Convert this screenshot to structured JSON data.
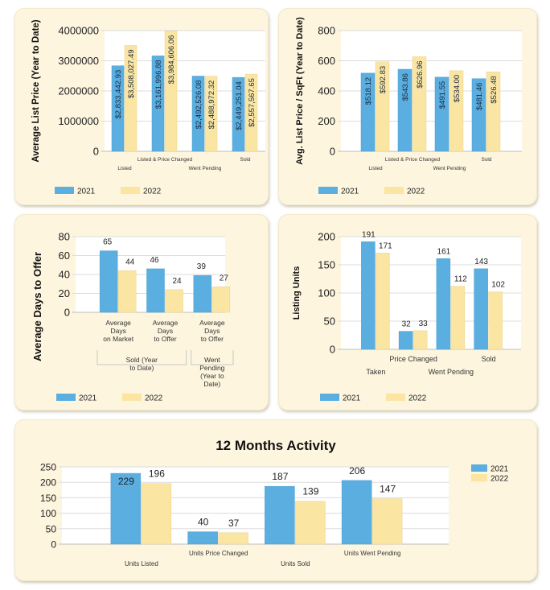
{
  "colors": {
    "series_2021": "#5aaee0",
    "series_2022": "#fbe5a3",
    "card_bg": "#fdf5de",
    "plot_bg": "#ffffff",
    "grid": "#dcdcdc"
  },
  "chart_data": [
    {
      "id": "avg-list-price",
      "type": "bar",
      "title": "",
      "ylabel": "Average List Price (Year to Date)",
      "xlabel": "",
      "ylim": [
        0,
        4000000
      ],
      "yticks": [
        "0",
        "1000000",
        "2000000",
        "3000000",
        "4000000"
      ],
      "categories": [
        "Listed",
        "Listed & Price Changed",
        "Went Pending",
        "Sold"
      ],
      "series": [
        {
          "name": "2021",
          "values": [
            2833442.93,
            3161996.88,
            2492526.08,
            2449251.04
          ],
          "labels": [
            "$2,833,442.93",
            "$3,161,996.88",
            "$2,492,526.08",
            "$2,449,251.04"
          ]
        },
        {
          "name": "2022",
          "values": [
            3508027.49,
            3984606.06,
            2488972.32,
            2557567.65
          ],
          "labels": [
            "$3,508,027.49",
            "$3,984,606.06",
            "$2,488,972.32",
            "$2,557,567.65"
          ]
        }
      ],
      "legend": [
        "2021",
        "2022"
      ],
      "legend_position": "bottom-left",
      "grid": true
    },
    {
      "id": "avg-price-sqft",
      "type": "bar",
      "title": "",
      "ylabel": "Avg. List Price / SqFt (Year to Date)",
      "xlabel": "",
      "ylim": [
        0,
        800
      ],
      "yticks": [
        "0",
        "200",
        "400",
        "600",
        "800"
      ],
      "categories": [
        "Listed",
        "Listed & Price Changed",
        "Went Pending",
        "Sold"
      ],
      "series": [
        {
          "name": "2021",
          "values": [
            518.12,
            543.86,
            491.55,
            481.46
          ],
          "labels": [
            "$518.12",
            "$543.86",
            "$491.55",
            "$481.46"
          ]
        },
        {
          "name": "2022",
          "values": [
            592.83,
            626.96,
            534.0,
            526.48
          ],
          "labels": [
            "$592.83",
            "$626.96",
            "$534.00",
            "$526.48"
          ]
        }
      ],
      "legend": [
        "2021",
        "2022"
      ],
      "legend_position": "bottom-left",
      "grid": true
    },
    {
      "id": "avg-days-offer",
      "type": "bar",
      "title": "",
      "ylabel": "Average Days to Offer",
      "xlabel": "",
      "ylim": [
        0,
        80
      ],
      "yticks": [
        "0",
        "20",
        "40",
        "60",
        "80"
      ],
      "categories": [
        [
          "Average",
          "Days",
          "on Market"
        ],
        [
          "Average",
          "Days",
          "to Offer"
        ],
        [
          "Average",
          "Days",
          "to Offer"
        ]
      ],
      "groups": [
        {
          "label": [
            "Sold (Year",
            "to Date)"
          ],
          "span": 2
        },
        {
          "label": [
            "Went",
            "Pending",
            "(Year to",
            "Date)"
          ],
          "span": 1
        }
      ],
      "series": [
        {
          "name": "2021",
          "values": [
            65,
            46,
            39
          ]
        },
        {
          "name": "2022",
          "values": [
            44,
            24,
            27
          ]
        }
      ],
      "legend": [
        "2021",
        "2022"
      ],
      "legend_position": "bottom-left",
      "grid": true
    },
    {
      "id": "listing-units",
      "type": "bar",
      "title": "",
      "ylabel": "Listing Units",
      "xlabel": "",
      "ylim": [
        0,
        200
      ],
      "yticks": [
        "0",
        "50",
        "100",
        "150",
        "200"
      ],
      "categories": [
        "Taken",
        "Price Changed",
        "Went Pending",
        "Sold"
      ],
      "series": [
        {
          "name": "2021",
          "values": [
            191,
            32,
            161,
            143
          ]
        },
        {
          "name": "2022",
          "values": [
            171,
            33,
            112,
            102
          ]
        }
      ],
      "legend": [
        "2021",
        "2022"
      ],
      "legend_position": "bottom-left",
      "grid": true
    },
    {
      "id": "twelve-months-activity",
      "type": "bar",
      "title": "12 Months Activity",
      "ylabel": "",
      "xlabel": "",
      "ylim": [
        0,
        250
      ],
      "yticks": [
        "0",
        "50",
        "100",
        "150",
        "200",
        "250"
      ],
      "categories": [
        "Units Listed",
        "Units Price Changed",
        "Units Sold",
        "Units Went Pending"
      ],
      "series": [
        {
          "name": "2021",
          "values": [
            229,
            40,
            187,
            206
          ]
        },
        {
          "name": "2022",
          "values": [
            196,
            37,
            139,
            147
          ]
        }
      ],
      "legend": [
        "2021",
        "2022"
      ],
      "legend_position": "top-right",
      "grid": true
    }
  ]
}
